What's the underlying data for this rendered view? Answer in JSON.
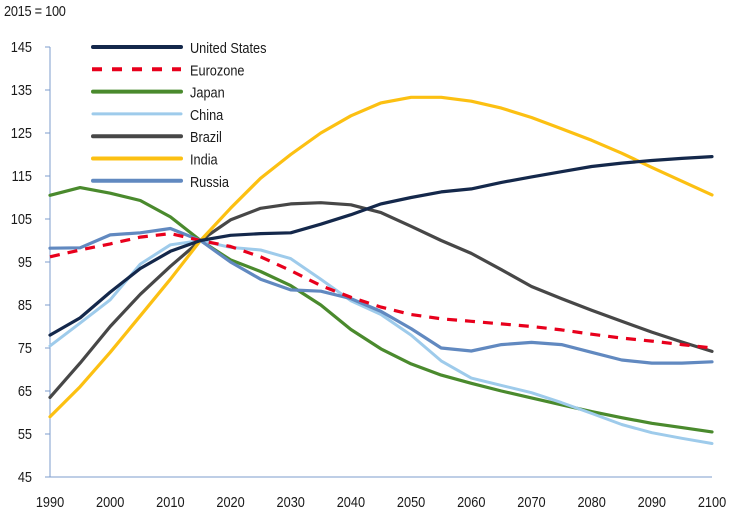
{
  "chart_data": {
    "type": "line",
    "title": "",
    "unit_label": "2015 = 100",
    "xlabel": "",
    "ylabel": "",
    "xlim": [
      1990,
      2100
    ],
    "ylim": [
      45,
      145
    ],
    "grid": false,
    "legend_position": "top-left",
    "x_ticks": [
      1990,
      2000,
      2010,
      2020,
      2030,
      2040,
      2050,
      2060,
      2070,
      2080,
      2090,
      2100
    ],
    "y_ticks": [
      45,
      55,
      65,
      75,
      85,
      95,
      105,
      115,
      125,
      135,
      145
    ],
    "x": [
      1990,
      1995,
      2000,
      2005,
      2010,
      2015,
      2020,
      2025,
      2030,
      2035,
      2040,
      2045,
      2050,
      2055,
      2060,
      2065,
      2070,
      2075,
      2080,
      2085,
      2090,
      2095,
      2100
    ],
    "series": [
      {
        "name": "United States",
        "color": "#14284b",
        "dashed": false,
        "values": [
          78,
          82,
          88,
          93.5,
          97.5,
          100,
          101.2,
          101.6,
          101.8,
          103.8,
          106,
          108.5,
          110,
          111.3,
          112,
          113.5,
          114.8,
          116,
          117.2,
          118,
          118.6,
          119.1,
          119.5
        ]
      },
      {
        "name": "Eurozone",
        "color": "#e8001c",
        "dashed": true,
        "values": [
          96.2,
          97.8,
          99.2,
          100.8,
          101.6,
          100,
          98.6,
          96.2,
          93,
          89.5,
          86.8,
          84.5,
          82.8,
          81.8,
          81.2,
          80.6,
          80,
          79.2,
          78.2,
          77.3,
          76.6,
          75.8,
          75
        ]
      },
      {
        "name": "Japan",
        "color": "#4a8a2d",
        "dashed": false,
        "values": [
          110.5,
          112.3,
          111,
          109.3,
          105.5,
          100,
          95.5,
          92.8,
          89.5,
          85,
          79.3,
          74.8,
          71.3,
          68.7,
          66.8,
          65,
          63.4,
          61.8,
          60.2,
          58.8,
          57.5,
          56.5,
          55.5
        ]
      },
      {
        "name": "China",
        "color": "#9ecbeb",
        "dashed": false,
        "values": [
          75.5,
          80.8,
          86.2,
          94.5,
          99,
          100,
          98.4,
          97.8,
          95.8,
          91,
          86,
          82.8,
          78,
          72,
          68,
          66.3,
          64.6,
          62.3,
          59.8,
          57.2,
          55.3,
          54,
          52.8
        ]
      },
      {
        "name": "Brazil",
        "color": "#474747",
        "dashed": false,
        "values": [
          63.5,
          71.5,
          80,
          87.5,
          94,
          100,
          104.8,
          107.5,
          108.5,
          108.8,
          108.3,
          106.5,
          103.3,
          100,
          97,
          93.2,
          89.3,
          86.5,
          83.8,
          81.2,
          78.7,
          76.4,
          74.2
        ]
      },
      {
        "name": "India",
        "color": "#fcc012",
        "dashed": false,
        "values": [
          59,
          66,
          74,
          82.5,
          91,
          100,
          107.5,
          114.5,
          120,
          125,
          129,
          132,
          133.3,
          133.3,
          132.4,
          130.8,
          128.6,
          126,
          123.3,
          120.3,
          117,
          113.8,
          110.6
        ]
      },
      {
        "name": "Russia",
        "color": "#6189c0",
        "dashed": false,
        "values": [
          98.2,
          98.3,
          101.3,
          101.8,
          102.8,
          100,
          95,
          91,
          88.5,
          88.2,
          86.5,
          83.5,
          79.5,
          75,
          74.3,
          75.8,
          76.3,
          75.8,
          74,
          72.2,
          71.5,
          71.5,
          71.8
        ]
      }
    ]
  }
}
